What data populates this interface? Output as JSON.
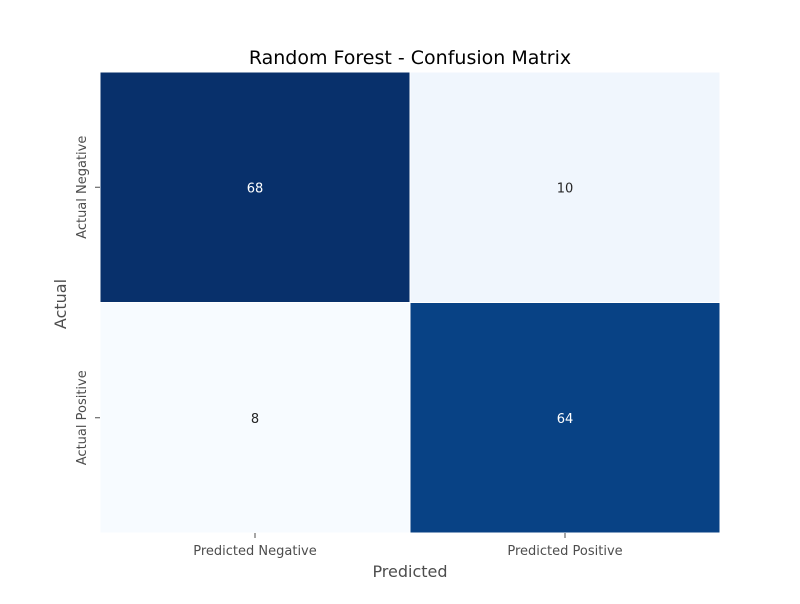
{
  "chart_data": {
    "type": "heatmap",
    "title": "Random Forest - Confusion Matrix",
    "xlabel": "Predicted",
    "ylabel": "Actual",
    "x_categories": [
      "Predicted Negative",
      "Predicted Positive"
    ],
    "y_categories": [
      "Actual Negative",
      "Actual Positive"
    ],
    "values": [
      [
        68,
        10
      ],
      [
        8,
        64
      ]
    ],
    "colormap": "Blues",
    "colorbar": false,
    "colors": {
      "cells": [
        [
          "#08306b",
          "#f0f6fd"
        ],
        [
          "#f7fbff",
          "#084285"
        ]
      ],
      "annotation_on_dark": "#ffffff",
      "annotation_on_light": "#262626",
      "label": "#4d4d4d",
      "title": "#000000"
    }
  }
}
